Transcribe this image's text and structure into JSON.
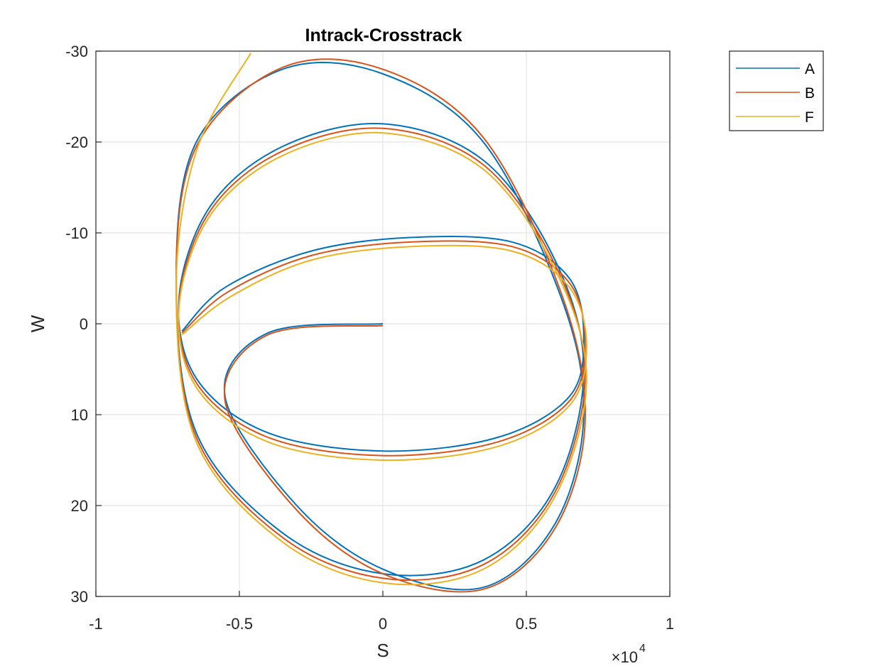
{
  "chart_data": {
    "type": "line",
    "title": "Intrack-Crosstrack",
    "xlabel": "S",
    "ylabel": "W",
    "x_exponent_label": "×10",
    "x_exponent_power": "4",
    "xlim": [
      -10000,
      10000
    ],
    "ylim": [
      -30,
      30
    ],
    "y_reversed": true,
    "grid": true,
    "legend_position": "top-right-outside",
    "x_ticks": [
      -10000,
      -5000,
      0,
      5000,
      10000
    ],
    "x_tick_labels": [
      "-1",
      "-0.5",
      "0",
      "0.5",
      "1"
    ],
    "y_ticks": [
      -30,
      -20,
      -10,
      0,
      10,
      20,
      30
    ],
    "y_tick_labels": [
      "-30",
      "-20",
      "-10",
      "0",
      "10",
      "20",
      "30"
    ],
    "series": [
      {
        "name": "A",
        "color": "#0072BD",
        "points": [
          [
            -7000,
            0.8
          ],
          [
            -5500,
            -4.0
          ],
          [
            -2500,
            -8.0
          ],
          [
            1000,
            -9.5
          ],
          [
            4500,
            -9.0
          ],
          [
            6500,
            -5.0
          ],
          [
            7000,
            1.5
          ],
          [
            6500,
            8.0
          ],
          [
            4000,
            12.5
          ],
          [
            0,
            14.0
          ],
          [
            -4000,
            12.0
          ],
          [
            -6500,
            6.0
          ],
          [
            -7100,
            -3.0
          ],
          [
            -6000,
            -13.0
          ],
          [
            -3500,
            -19.5
          ],
          [
            0,
            -22.0
          ],
          [
            3500,
            -18.0
          ],
          [
            6000,
            -7.0
          ],
          [
            7000,
            5.0
          ],
          [
            6000,
            18.0
          ],
          [
            3500,
            26.0
          ],
          [
            0,
            27.5
          ],
          [
            -3500,
            23.0
          ],
          [
            -6500,
            12.0
          ],
          [
            -7200,
            -5.0
          ],
          [
            -6500,
            -20.0
          ],
          [
            -3500,
            -28.0
          ],
          [
            0,
            -27.5
          ],
          [
            3500,
            -20.0
          ],
          [
            6200,
            -3.0
          ],
          [
            7000,
            10.0
          ],
          [
            6000,
            22.0
          ],
          [
            3500,
            29.0
          ],
          [
            0,
            27.0
          ],
          [
            -3000,
            20.0
          ],
          [
            -5500,
            8.0
          ],
          [
            -4000,
            1.0
          ],
          [
            0,
            0.0
          ]
        ]
      },
      {
        "name": "B",
        "color": "#D95319",
        "points": [
          [
            -7000,
            1.0
          ],
          [
            -5400,
            -3.5
          ],
          [
            -2500,
            -7.5
          ],
          [
            1000,
            -9.0
          ],
          [
            4500,
            -8.5
          ],
          [
            6500,
            -4.5
          ],
          [
            7050,
            2.0
          ],
          [
            6500,
            8.5
          ],
          [
            4000,
            13.0
          ],
          [
            0,
            14.5
          ],
          [
            -4000,
            12.5
          ],
          [
            -6500,
            6.5
          ],
          [
            -7100,
            -2.5
          ],
          [
            -6000,
            -12.5
          ],
          [
            -3500,
            -19.0
          ],
          [
            0,
            -21.5
          ],
          [
            3500,
            -17.5
          ],
          [
            6000,
            -6.5
          ],
          [
            7050,
            5.5
          ],
          [
            6000,
            18.5
          ],
          [
            3500,
            26.5
          ],
          [
            0,
            28.0
          ],
          [
            -3500,
            23.5
          ],
          [
            -6500,
            12.5
          ],
          [
            -7200,
            -4.5
          ],
          [
            -6500,
            -19.5
          ],
          [
            -3500,
            -28.2
          ],
          [
            0,
            -28.0
          ],
          [
            3500,
            -20.5
          ],
          [
            6200,
            -3.5
          ],
          [
            7050,
            10.5
          ],
          [
            6000,
            22.5
          ],
          [
            3500,
            29.2
          ],
          [
            0,
            27.5
          ],
          [
            -3000,
            20.5
          ],
          [
            -5500,
            8.5
          ],
          [
            -4000,
            1.2
          ],
          [
            0,
            0.2
          ]
        ]
      },
      {
        "name": "F",
        "color": "#EDB120",
        "points": [
          [
            -7000,
            1.2
          ],
          [
            -5300,
            -3.0
          ],
          [
            -2500,
            -7.0
          ],
          [
            1000,
            -8.5
          ],
          [
            4500,
            -8.0
          ],
          [
            6500,
            -4.0
          ],
          [
            7100,
            2.5
          ],
          [
            6500,
            9.0
          ],
          [
            4000,
            13.5
          ],
          [
            0,
            15.0
          ],
          [
            -4000,
            13.0
          ],
          [
            -6500,
            7.0
          ],
          [
            -7100,
            -2.0
          ],
          [
            -6000,
            -12.0
          ],
          [
            -3500,
            -18.5
          ],
          [
            0,
            -21.0
          ],
          [
            3500,
            -17.0
          ],
          [
            6000,
            -6.0
          ],
          [
            7100,
            6.0
          ],
          [
            6000,
            19.0
          ],
          [
            3500,
            27.0
          ],
          [
            0,
            28.5
          ],
          [
            -3500,
            24.0
          ],
          [
            -6500,
            13.0
          ],
          [
            -7200,
            -4.0
          ],
          [
            -6500,
            -19.0
          ],
          [
            -4600,
            -29.8
          ]
        ]
      }
    ]
  }
}
